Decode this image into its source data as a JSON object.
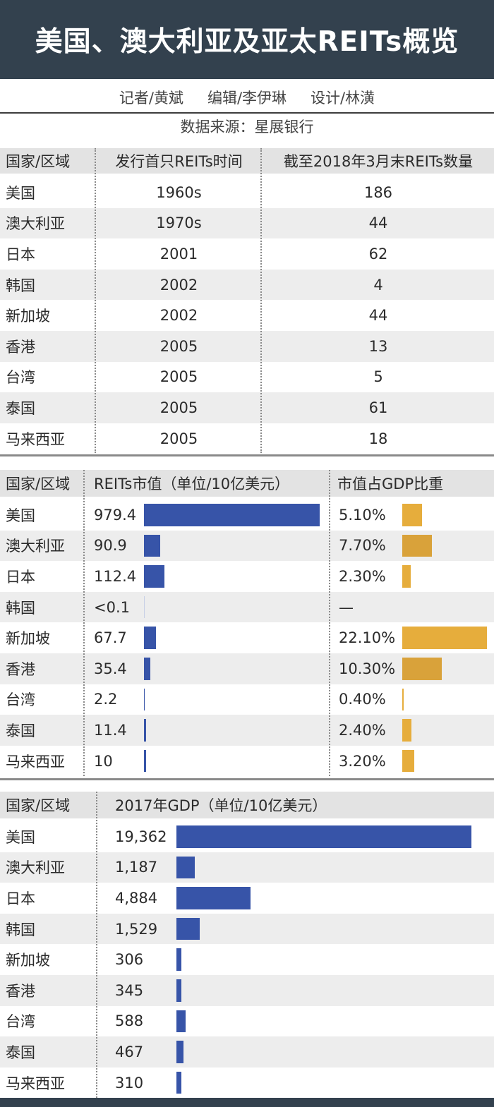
{
  "title": "美国、澳大利亚及亚太REITs概览",
  "credits": {
    "reporter": "记者/黄斌",
    "editor": "编辑/李伊琳",
    "design": "设计/林潢"
  },
  "source": "数据来源：星展银行",
  "colors": {
    "header_bg": "#33414e",
    "blue_bar": "#3754a8",
    "gold_bar": "#e6ad3c",
    "gold_bar_dark": "#d9a23a",
    "row_shade": "#ededed"
  },
  "chart_data": [
    {
      "type": "table",
      "columns": [
        "国家/区域",
        "发行首只REITs时间",
        "截至2018年3月末REITs数量"
      ],
      "rows": [
        [
          "美国",
          "1960s",
          "186"
        ],
        [
          "澳大利亚",
          "1970s",
          "44"
        ],
        [
          "日本",
          "2001",
          "62"
        ],
        [
          "韩国",
          "2002",
          "4"
        ],
        [
          "新加坡",
          "2002",
          "44"
        ],
        [
          "香港",
          "2005",
          "13"
        ],
        [
          "台湾",
          "2005",
          "5"
        ],
        [
          "泰国",
          "2005",
          "61"
        ],
        [
          "马来西亚",
          "2005",
          "18"
        ]
      ]
    },
    {
      "type": "bar",
      "orientation": "horizontal",
      "columns": [
        "国家/区域",
        "REITs市值（单位/10亿美元）",
        "市值占GDP比重"
      ],
      "categories": [
        "美国",
        "澳大利亚",
        "日本",
        "韩国",
        "新加坡",
        "香港",
        "台湾",
        "泰国",
        "马来西亚"
      ],
      "market_cap_labels": [
        "979.4",
        "90.9",
        "112.4",
        "<0.1",
        "67.7",
        "35.4",
        "2.2",
        "11.4",
        "10"
      ],
      "market_cap": [
        979.4,
        90.9,
        112.4,
        0.05,
        67.7,
        35.4,
        2.2,
        11.4,
        10
      ],
      "gdp_share_labels": [
        "5.10%",
        "7.70%",
        "2.30%",
        "—",
        "22.10%",
        "10.30%",
        "0.40%",
        "2.40%",
        "3.20%"
      ],
      "gdp_share": [
        5.1,
        7.7,
        2.3,
        null,
        22.1,
        10.3,
        0.4,
        2.4,
        3.2
      ]
    },
    {
      "type": "bar",
      "orientation": "horizontal",
      "columns": [
        "国家/区域",
        "2017年GDP（单位/10亿美元）"
      ],
      "categories": [
        "美国",
        "澳大利亚",
        "日本",
        "韩国",
        "新加坡",
        "香港",
        "台湾",
        "泰国",
        "马来西亚"
      ],
      "value_labels": [
        "19,362",
        "1,187",
        "4,884",
        "1,529",
        "306",
        "345",
        "588",
        "467",
        "310"
      ],
      "values": [
        19362,
        1187,
        4884,
        1529,
        306,
        345,
        588,
        467,
        310
      ]
    }
  ]
}
